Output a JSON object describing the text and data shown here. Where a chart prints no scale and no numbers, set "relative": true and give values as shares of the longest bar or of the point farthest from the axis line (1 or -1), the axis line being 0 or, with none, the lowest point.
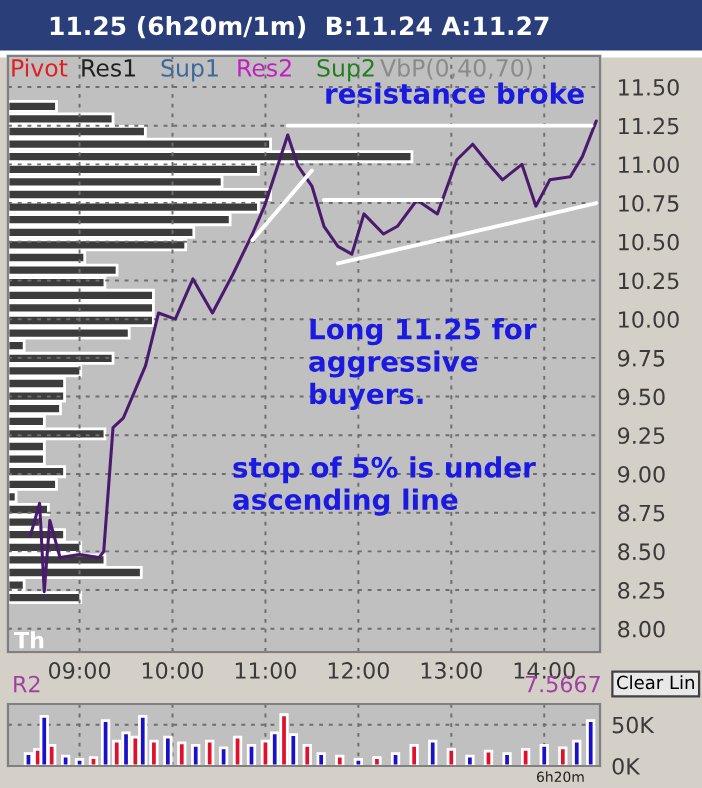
{
  "chart_data": [
    {
      "type": "line",
      "title": "11.25 (6h20m/1m)  B:11.24 A:11.27",
      "annotations": [
        "Pivot",
        "Res1",
        "Sup1",
        "Res2",
        "Sup2",
        "VbP(0,40,70)",
        "resistance broke",
        "Long 11.25 for\naggressive\nbuyers.",
        "stop of 5% is under\nascending line",
        "Th",
        "R2",
        "7.5667",
        "Clear Lin",
        "6h20m"
      ],
      "series": [
        {
          "color": "#4a1a6e",
          "x": [
            8.47,
            8.57,
            8.62,
            8.68,
            8.79,
            9.0,
            9.21,
            9.26,
            9.36,
            9.47,
            9.71,
            9.85,
            10.03,
            10.22,
            10.43,
            10.65,
            10.86,
            10.99,
            11.24,
            11.35,
            11.5,
            11.63,
            11.78,
            11.93,
            12.06,
            12.27,
            12.42,
            12.63,
            12.85,
            13.06,
            13.23,
            13.42,
            13.55,
            13.76,
            13.91,
            14.06,
            14.28,
            14.41,
            14.56
          ],
          "values": [
            8.6,
            8.81,
            8.24,
            8.7,
            8.46,
            8.48,
            8.46,
            8.5,
            9.3,
            9.36,
            9.7,
            10.04,
            10.0,
            10.26,
            10.04,
            10.29,
            10.55,
            10.73,
            11.19,
            10.99,
            10.86,
            10.6,
            10.47,
            10.42,
            10.68,
            10.55,
            10.6,
            10.77,
            10.68,
            11.03,
            11.13,
            10.99,
            10.9,
            11.0,
            10.73,
            10.9,
            10.92,
            11.05,
            11.28
          ]
        },
        {
          "color": "#ffffff",
          "x": [
            11.24,
            14.51
          ],
          "values": [
            11.25,
            11.25
          ]
        },
        {
          "color": "#ffffff",
          "x": [
            10.86,
            11.5
          ],
          "values": [
            10.51,
            10.96
          ]
        },
        {
          "color": "#ffffff",
          "x": [
            11.63,
            12.89
          ],
          "values": [
            10.77,
            10.77
          ]
        },
        {
          "color": "#ffffff",
          "x": [
            11.78,
            14.56
          ],
          "values": [
            10.36,
            10.75
          ]
        }
      ],
      "xlim": [
        8.23,
        14.6
      ],
      "ylim": [
        7.85,
        11.7
      ],
      "xticks": [
        {
          "value": 9,
          "label": "09:00"
        },
        {
          "value": 10,
          "label": "10:00"
        },
        {
          "value": 11,
          "label": "11:00"
        },
        {
          "value": 12,
          "label": "12:00"
        },
        {
          "value": 13,
          "label": "13:00"
        },
        {
          "value": 14,
          "label": "14:00"
        }
      ],
      "yticks": [
        {
          "value": 8,
          "label": "8.00"
        },
        {
          "value": 8.25,
          "label": "8.25"
        },
        {
          "value": 8.5,
          "label": "8.50"
        },
        {
          "value": 8.75,
          "label": "8.75"
        },
        {
          "value": 9,
          "label": "9.00"
        },
        {
          "value": 9.25,
          "label": "9.25"
        },
        {
          "value": 9.5,
          "label": "9.50"
        },
        {
          "value": 9.75,
          "label": "9.75"
        },
        {
          "value": 10,
          "label": "10.00"
        },
        {
          "value": 10.25,
          "label": "10.25"
        },
        {
          "value": 10.5,
          "label": "10.50"
        },
        {
          "value": 10.75,
          "label": "10.75"
        },
        {
          "value": 11,
          "label": "11.00"
        },
        {
          "value": 11.25,
          "label": "11.25"
        },
        {
          "value": 11.5,
          "label": "11.50"
        }
      ],
      "grid": true,
      "line_style": "solid"
    },
    {
      "type": "bar",
      "orientation": "horizontal",
      "relative": true,
      "color": "#3c3c3c",
      "categories": [
        null,
        null,
        null,
        null,
        null,
        null,
        null,
        null,
        null,
        null,
        null,
        null,
        null,
        null,
        null,
        null,
        null,
        null,
        null,
        null,
        null,
        null,
        null,
        null,
        null,
        null,
        null,
        null,
        null,
        null,
        null,
        null,
        null,
        null,
        null,
        null,
        null,
        null,
        null,
        null
      ],
      "values": [
        0.12,
        0.26,
        0.34,
        0.65,
        1,
        0.62,
        0.53,
        0.65,
        0.62,
        0.55,
        0.46,
        0.44,
        0.19,
        0.27,
        0.24,
        0.36,
        0.36,
        0.36,
        0.3,
        0.04,
        0.26,
        0.18,
        0.14,
        0.14,
        0.13,
        0.09,
        0.24,
        0.09,
        0.09,
        0.14,
        0.12,
        0.02,
        0.1,
        0.08,
        0.14,
        0.18,
        0.24,
        0.33,
        0.04,
        0.18
      ]
    },
    {
      "type": "bar",
      "x": [
        8.45,
        8.55,
        8.62,
        8.7,
        8.85,
        9.0,
        9.15,
        9.28,
        9.4,
        9.5,
        9.6,
        9.68,
        9.8,
        9.95,
        10.1,
        10.25,
        10.4,
        10.55,
        10.7,
        10.85,
        11.0,
        11.1,
        11.2,
        11.3,
        11.45,
        11.6,
        11.8,
        12.0,
        12.2,
        12.4,
        12.6,
        12.8,
        13.0,
        13.2,
        13.4,
        13.6,
        13.8,
        14.0,
        14.2,
        14.35,
        14.5
      ],
      "values": [
        15000,
        20000,
        60000,
        25000,
        12000,
        8000,
        10000,
        55000,
        30000,
        40000,
        35000,
        60000,
        30000,
        35000,
        28000,
        25000,
        30000,
        22000,
        35000,
        25000,
        30000,
        40000,
        62000,
        38000,
        25000,
        15000,
        12000,
        8000,
        10000,
        15000,
        25000,
        30000,
        20000,
        12000,
        18000,
        15000,
        20000,
        25000,
        22000,
        30000,
        55000
      ],
      "colors": [
        "#1a10c8",
        "#e0102a",
        "#1a10c8",
        "#e0102a",
        "#1a10c8",
        "#1a10c8",
        "#e0102a",
        "#1a10c8",
        "#e0102a",
        "#1a10c8",
        "#e0102a",
        "#1a10c8",
        "#e0102a",
        "#1a10c8",
        "#e0102a",
        "#1a10c8",
        "#e0102a",
        "#1a10c8",
        "#e0102a",
        "#1a10c8",
        "#e0102a",
        "#1a10c8",
        "#e0102a",
        "#1a10c8",
        "#e0102a",
        "#1a10c8",
        "#e0102a",
        "#1a10c8",
        "#e0102a",
        "#1a10c8",
        "#e0102a",
        "#1a10c8",
        "#e0102a",
        "#1a10c8",
        "#e0102a",
        "#1a10c8",
        "#e0102a",
        "#1a10c8",
        "#e0102a",
        "#1a10c8",
        "#1a10c8"
      ],
      "xlim": [
        8.23,
        14.6
      ],
      "ylim": [
        0,
        75000
      ],
      "yticks": [
        {
          "value": 0,
          "label": "0K"
        },
        {
          "value": 50000,
          "label": "50K"
        }
      ],
      "xticks": [
        {
          "value": 9,
          "label": null
        },
        {
          "value": 10,
          "label": null
        },
        {
          "value": 11,
          "label": null
        },
        {
          "value": 12,
          "label": null
        },
        {
          "value": 13,
          "label": null
        },
        {
          "value": 14,
          "label": null
        }
      ],
      "tick_labels": "y",
      "grid": true
    }
  ]
}
